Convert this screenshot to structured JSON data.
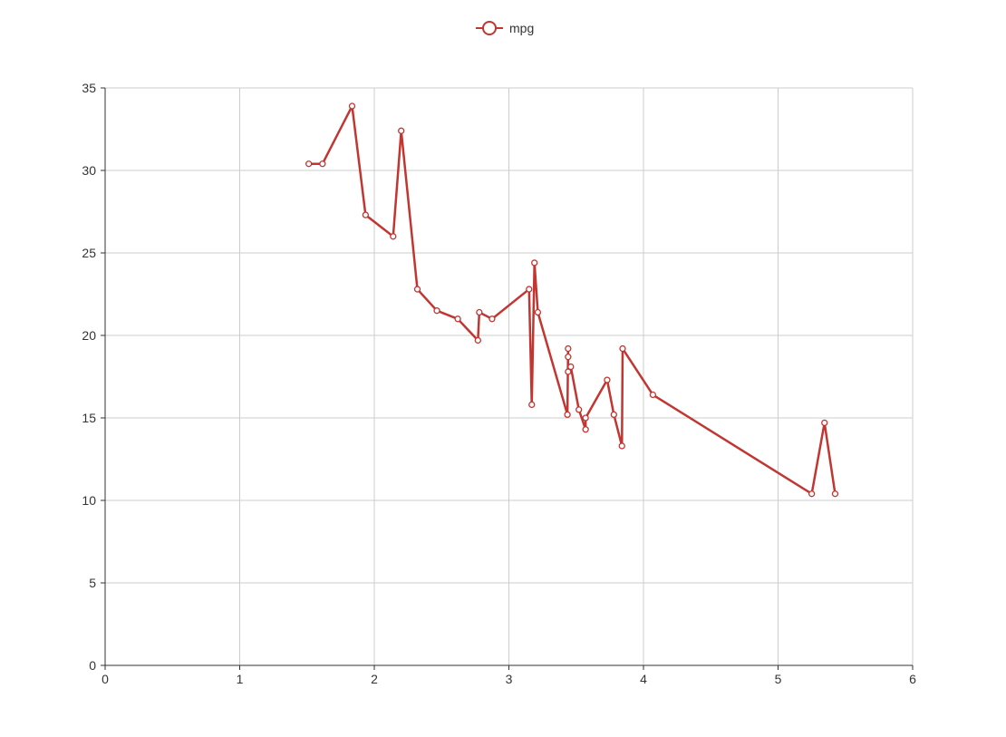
{
  "chart_data": {
    "type": "line",
    "title": "",
    "xlabel": "",
    "ylabel": "",
    "xlim": [
      0,
      6
    ],
    "ylim": [
      0,
      35
    ],
    "x_ticks": [
      0,
      1,
      2,
      3,
      4,
      5,
      6
    ],
    "y_ticks": [
      0,
      5,
      10,
      15,
      20,
      25,
      30,
      35
    ],
    "grid": true,
    "legend_position": "top-center",
    "series": [
      {
        "name": "mpg",
        "color": "#c23531",
        "marker": "circle",
        "points": [
          [
            1.513,
            30.4
          ],
          [
            1.615,
            30.4
          ],
          [
            1.835,
            33.9
          ],
          [
            1.935,
            27.3
          ],
          [
            2.14,
            26.0
          ],
          [
            2.2,
            32.4
          ],
          [
            2.32,
            22.8
          ],
          [
            2.465,
            21.5
          ],
          [
            2.62,
            21.0
          ],
          [
            2.77,
            19.7
          ],
          [
            2.78,
            21.4
          ],
          [
            2.875,
            21.0
          ],
          [
            3.15,
            22.8
          ],
          [
            3.17,
            15.8
          ],
          [
            3.19,
            24.4
          ],
          [
            3.215,
            21.4
          ],
          [
            3.435,
            15.2
          ],
          [
            3.44,
            19.2
          ],
          [
            3.44,
            18.7
          ],
          [
            3.44,
            17.8
          ],
          [
            3.46,
            18.1
          ],
          [
            3.52,
            15.5
          ],
          [
            3.57,
            14.3
          ],
          [
            3.57,
            15.0
          ],
          [
            3.73,
            17.3
          ],
          [
            3.78,
            15.2
          ],
          [
            3.84,
            13.3
          ],
          [
            3.845,
            19.2
          ],
          [
            4.07,
            16.4
          ],
          [
            5.25,
            10.4
          ],
          [
            5.345,
            14.7
          ],
          [
            5.424,
            10.4
          ]
        ]
      }
    ]
  }
}
